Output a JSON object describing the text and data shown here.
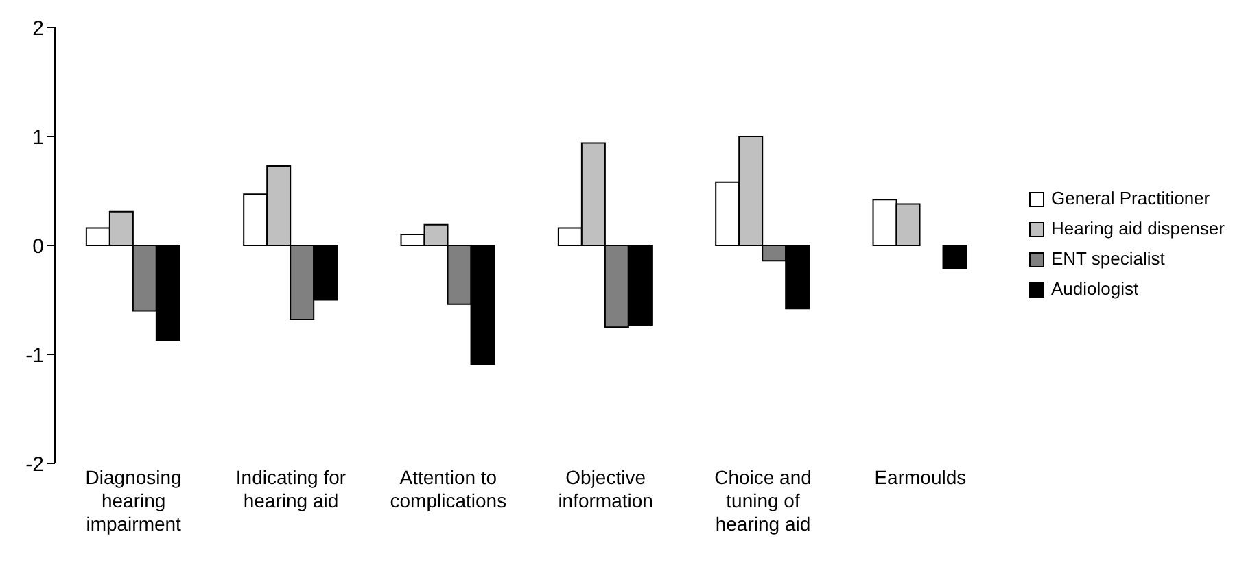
{
  "chart_data": {
    "type": "bar",
    "categories": [
      "Diagnosing hearing impairment",
      "Indicating for hearing aid",
      "Attention to complications",
      "Objective information",
      "Choice and tuning of hearing aid",
      "Earmoulds"
    ],
    "series": [
      {
        "name": "General Practitioner",
        "color": "#ffffff",
        "values": [
          0.16,
          0.47,
          0.1,
          0.16,
          0.58,
          0.42
        ]
      },
      {
        "name": "Hearing aid dispenser",
        "color": "#c0c0c0",
        "values": [
          0.31,
          0.73,
          0.19,
          0.94,
          1.0,
          0.38
        ]
      },
      {
        "name": "ENT specialist",
        "color": "#808080",
        "values": [
          -0.6,
          -0.68,
          -0.54,
          -0.75,
          -0.14,
          0
        ]
      },
      {
        "name": "Audiologist",
        "color": "#000000",
        "values": [
          -0.87,
          -0.5,
          -1.09,
          -0.73,
          -0.58,
          -0.21
        ]
      }
    ],
    "ylim": [
      -2,
      2
    ],
    "yticks": [
      -2,
      -1,
      0,
      1,
      2
    ],
    "grid": false,
    "legend": "right"
  }
}
